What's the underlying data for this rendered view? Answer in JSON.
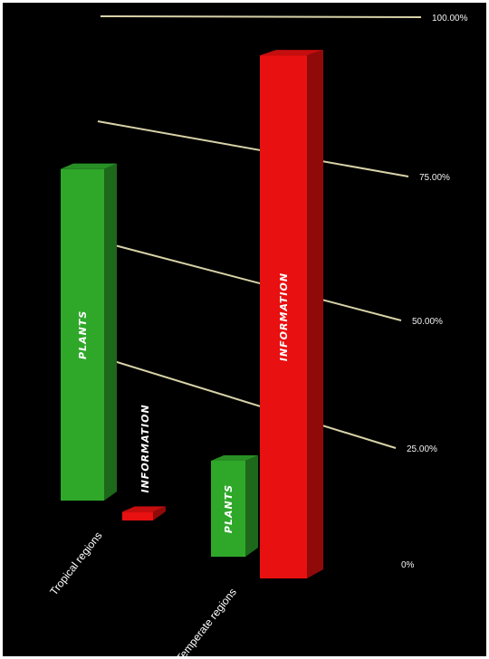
{
  "chart_data": {
    "type": "bar",
    "title": "",
    "xlabel": "",
    "ylabel": "",
    "categories": [
      "Tropical regions",
      "Temperate regions"
    ],
    "series": [
      {
        "name": "PLANTS",
        "values": [
          76,
          22
        ],
        "color": "#2fa82a"
      },
      {
        "name": "INFORMATION",
        "values": [
          4,
          96
        ],
        "color": "#e81010"
      }
    ],
    "ylim": [
      0,
      100
    ],
    "y_ticks": [
      "0%",
      "25.00%",
      "50.00%",
      "75.00%",
      "100.00%"
    ],
    "grid": true,
    "legend": "none",
    "bar_labels": true,
    "style": "3d"
  }
}
